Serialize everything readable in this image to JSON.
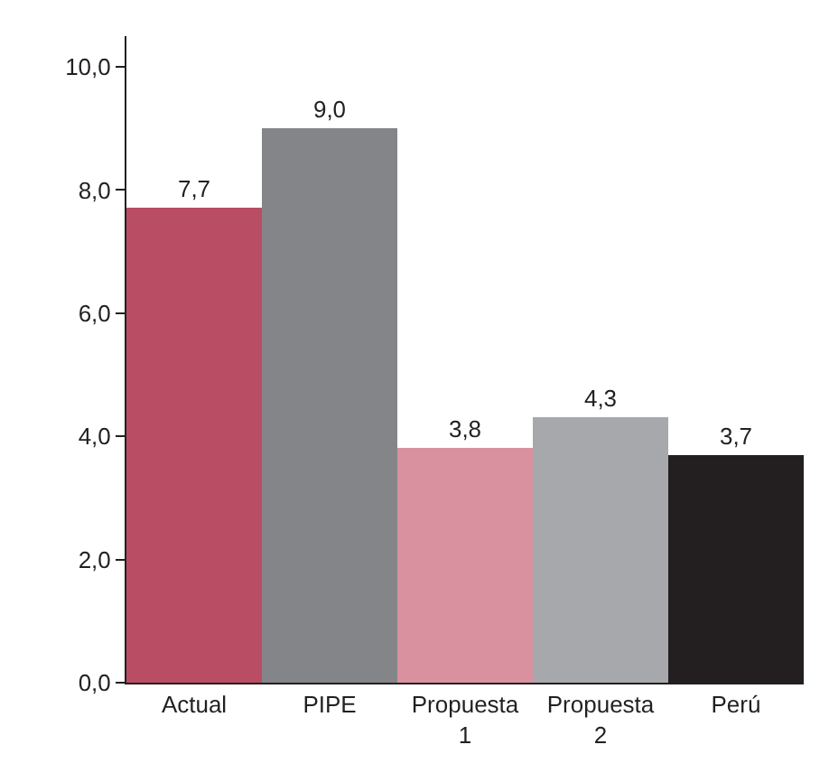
{
  "chart_data": {
    "type": "bar",
    "categories": [
      "Actual",
      "PIPE",
      "Propuesta 1",
      "Propuesta 2",
      "Perú"
    ],
    "values": [
      7.7,
      9.0,
      3.8,
      4.3,
      3.7
    ],
    "colors": [
      "#b94d63",
      "#848589",
      "#d9919f",
      "#a7a8ac",
      "#231f20"
    ],
    "value_labels": [
      "7,7",
      "9,0",
      "3,8",
      "4,3",
      "3,7"
    ],
    "ylim": [
      0,
      10.5
    ],
    "yticks": [
      {
        "value": 0,
        "label": "0,0"
      },
      {
        "value": 2,
        "label": "2,0"
      },
      {
        "value": 4,
        "label": "4,0"
      },
      {
        "value": 6,
        "label": "6,0"
      },
      {
        "value": 8,
        "label": "8,0"
      },
      {
        "value": 10,
        "label": "10,0"
      }
    ]
  }
}
